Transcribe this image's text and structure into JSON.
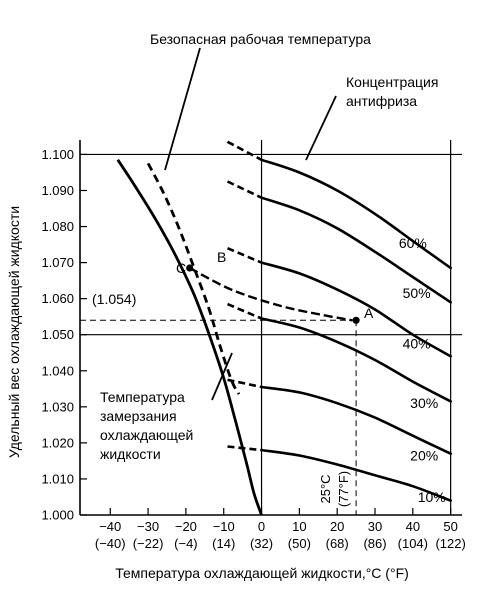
{
  "chart_data": {
    "type": "line",
    "xlabel": "Температура охлаждающей жидкости,°C (°F)",
    "ylabel": "Удельный вес охлаждающей жидкости",
    "xlim": [
      -48,
      53
    ],
    "ylim": [
      1.0,
      1.104
    ],
    "grid": false,
    "x_ticks": [
      {
        "c": -40,
        "c_label": "−40",
        "f_label": "(−40)"
      },
      {
        "c": -30,
        "c_label": "−30",
        "f_label": "(−22)"
      },
      {
        "c": -20,
        "c_label": "−20",
        "f_label": "(−4)"
      },
      {
        "c": -10,
        "c_label": "−10",
        "f_label": "(14)"
      },
      {
        "c": 0,
        "c_label": "0",
        "f_label": "(32)"
      },
      {
        "c": 10,
        "c_label": "10",
        "f_label": "(50)"
      },
      {
        "c": 20,
        "c_label": "20",
        "f_label": "(68)"
      },
      {
        "c": 30,
        "c_label": "30",
        "f_label": "(86)"
      },
      {
        "c": 40,
        "c_label": "40",
        "f_label": "(104)"
      },
      {
        "c": 50,
        "c_label": "50",
        "f_label": "(122)"
      }
    ],
    "y_ticks": [
      1.0,
      1.01,
      1.02,
      1.03,
      1.04,
      1.05,
      1.06,
      1.07,
      1.08,
      1.09,
      1.1
    ],
    "y_tick_labels": [
      "1.000",
      "1.010",
      "1.020",
      "1.030",
      "1.040",
      "1.050",
      "1.060",
      "1.070",
      "1.080",
      "1.090",
      "1.100"
    ],
    "ref_lines": {
      "horizontal": [
        1.1,
        1.05
      ],
      "vertical": [
        0,
        50
      ]
    },
    "series": [
      {
        "label": "10%",
        "label_at": [
          45,
          1.005
        ],
        "solid": [
          [
            0,
            1.018
          ],
          [
            10,
            1.0165
          ],
          [
            20,
            1.014
          ],
          [
            30,
            1.011
          ],
          [
            40,
            1.008
          ],
          [
            50,
            1.004
          ]
        ],
        "dashed": [
          [
            -9,
            1.019
          ],
          [
            0,
            1.018
          ]
        ]
      },
      {
        "label": "20%",
        "label_at": [
          43,
          1.0165
        ],
        "solid": [
          [
            0,
            1.0355
          ],
          [
            10,
            1.034
          ],
          [
            20,
            1.031
          ],
          [
            30,
            1.027
          ],
          [
            40,
            1.022
          ],
          [
            50,
            1.017
          ]
        ],
        "dashed": [
          [
            -9,
            1.0375
          ],
          [
            0,
            1.0355
          ]
        ]
      },
      {
        "label": "30%",
        "label_at": [
          43,
          1.031
        ],
        "solid": [
          [
            0,
            1.0545
          ],
          [
            10,
            1.052
          ],
          [
            20,
            1.048
          ],
          [
            30,
            1.043
          ],
          [
            40,
            1.037
          ],
          [
            50,
            1.0315
          ]
        ],
        "dashed": [
          [
            -9,
            1.0585
          ],
          [
            0,
            1.0545
          ]
        ]
      },
      {
        "label": "40%",
        "label_at": [
          41,
          1.0475
        ],
        "solid": [
          [
            0,
            1.07
          ],
          [
            10,
            1.067
          ],
          [
            20,
            1.0625
          ],
          [
            30,
            1.057
          ],
          [
            40,
            1.05
          ],
          [
            50,
            1.044
          ]
        ],
        "dashed": [
          [
            -9,
            1.074
          ],
          [
            0,
            1.07
          ]
        ]
      },
      {
        "label": "50%",
        "label_at": [
          41,
          1.0615
        ],
        "solid": [
          [
            0,
            1.088
          ],
          [
            10,
            1.0845
          ],
          [
            20,
            1.0795
          ],
          [
            30,
            1.073
          ],
          [
            40,
            1.066
          ],
          [
            50,
            1.059
          ]
        ],
        "dashed": [
          [
            -9,
            1.0925
          ],
          [
            0,
            1.088
          ]
        ]
      },
      {
        "label": "60%",
        "label_at": [
          40,
          1.0755
        ],
        "solid": [
          [
            0,
            1.0985
          ],
          [
            10,
            1.095
          ],
          [
            20,
            1.09
          ],
          [
            30,
            1.0835
          ],
          [
            40,
            1.076
          ],
          [
            50,
            1.0685
          ]
        ],
        "dashed": [
          [
            -9,
            1.1035
          ],
          [
            0,
            1.0985
          ]
        ]
      }
    ],
    "freezing_curve": [
      [
        -38,
        1.0985
      ],
      [
        -33,
        1.0905
      ],
      [
        -28,
        1.082
      ],
      [
        -23,
        1.0725
      ],
      [
        -18,
        1.0615
      ],
      [
        -14,
        1.0505
      ],
      [
        -10,
        1.038
      ],
      [
        -7,
        1.0265
      ],
      [
        -4,
        1.0145
      ],
      [
        -2,
        1.006
      ],
      [
        0,
        1.0
      ]
    ],
    "safe_curve": [
      [
        -30,
        1.0975
      ],
      [
        -26,
        1.0895
      ],
      [
        -22,
        1.08
      ],
      [
        -18,
        1.069
      ],
      [
        -14,
        1.0575
      ],
      [
        -11,
        1.047
      ],
      [
        -8,
        1.0375
      ],
      [
        -6,
        1.0335
      ]
    ],
    "ab_line": [
      [
        -19,
        1.0685
      ],
      [
        -8,
        1.0625
      ],
      [
        5,
        1.058
      ],
      [
        16,
        1.0555
      ],
      [
        24,
        1.054
      ]
    ],
    "point_a": {
      "label": "A",
      "x": 25,
      "y": 1.054
    },
    "point_b": {
      "label": "B",
      "x": -16,
      "y": 1.0685
    },
    "point_c": {
      "label": "C",
      "x": -19,
      "y": 1.0685
    },
    "reading_label": "(1.054)",
    "reading_value": 1.054,
    "temp_label_c": "25°C",
    "temp_label_f": "(77°F)",
    "annotations": {
      "safe_temp": "Безопасная рабочая температура",
      "antifreeze_1": "Концентрация",
      "antifreeze_2": "антифриза",
      "freeze_1": "Температура",
      "freeze_2": "замерзания",
      "freeze_3": "охлаждающей",
      "freeze_4": "жидкости"
    }
  }
}
